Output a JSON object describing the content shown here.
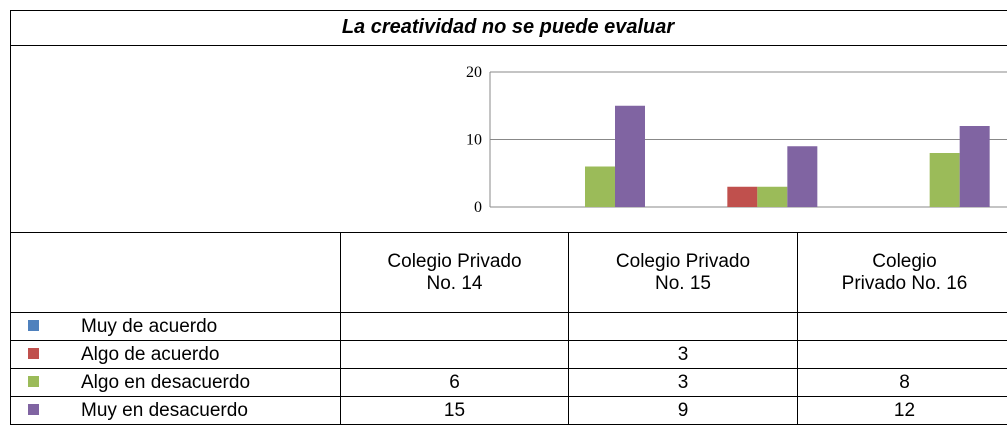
{
  "chart_data": {
    "type": "bar",
    "title": "La creatividad no se puede evaluar",
    "categories": [
      "Colegio Privado No. 14",
      "Colegio Privado No. 15",
      "Colegio Privado No. 16"
    ],
    "series": [
      {
        "name": "Muy de acuerdo",
        "color": "#4f81bd",
        "values": [
          null,
          null,
          null
        ]
      },
      {
        "name": "Algo de acuerdo",
        "color": "#c0504d",
        "values": [
          null,
          3,
          null
        ]
      },
      {
        "name": "Algo en desacuerdo",
        "color": "#9bbb59",
        "values": [
          6,
          3,
          8
        ]
      },
      {
        "name": "Muy en desacuerdo",
        "color": "#8064a2",
        "values": [
          15,
          9,
          12
        ]
      }
    ],
    "ylim": [
      0,
      20
    ],
    "yticks": [
      0,
      10,
      20
    ],
    "grid": true
  }
}
